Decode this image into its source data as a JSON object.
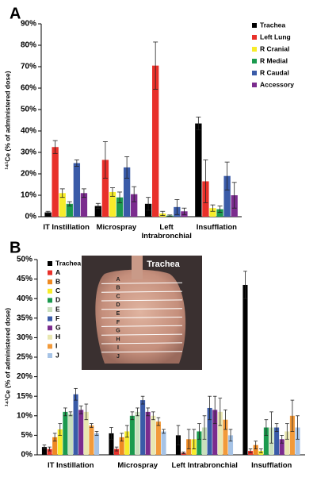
{
  "chart_data": [
    {
      "type": "bar",
      "panel_label": "A",
      "y_label": "¹⁴¹Ce (% of administered dose)",
      "categories": [
        "IT Instillation",
        "Microspray",
        "Left Intrabronchial",
        "Insufflation"
      ],
      "ylim": [
        0,
        90
      ],
      "yticks": [
        {
          "value": 0,
          "label": "0%"
        },
        {
          "value": 10,
          "label": "10%"
        },
        {
          "value": 20,
          "label": "20%"
        },
        {
          "value": 30,
          "label": "30%"
        },
        {
          "value": 40,
          "label": "40%"
        },
        {
          "value": 50,
          "label": "50%"
        },
        {
          "value": 60,
          "label": "60%"
        },
        {
          "value": 70,
          "label": "70%"
        },
        {
          "value": 80,
          "label": "80%"
        },
        {
          "value": 90,
          "label": "90%"
        }
      ],
      "legend": "right",
      "series": [
        {
          "name": "Trachea",
          "color": "#000000",
          "values": [
            2,
            5,
            6,
            43.5
          ],
          "errors": [
            0.5,
            1.2,
            3,
            3
          ]
        },
        {
          "name": "Left Lung",
          "color": "#e8302a",
          "values": [
            32.5,
            26.5,
            70.5,
            16.5
          ],
          "errors": [
            3,
            8.5,
            11,
            10
          ]
        },
        {
          "name": "R Cranial",
          "color": "#f7ec2a",
          "values": [
            11,
            11.5,
            1.5,
            4
          ],
          "errors": [
            2,
            2,
            1,
            1.5
          ]
        },
        {
          "name": "R Medial",
          "color": "#1b9a4e",
          "values": [
            6,
            9,
            0.5,
            3.5
          ],
          "errors": [
            1,
            2.5,
            0.3,
            1.5
          ]
        },
        {
          "name": "R Caudal",
          "color": "#3a5ba8",
          "values": [
            25,
            23,
            4.5,
            19
          ],
          "errors": [
            1.5,
            5,
            3.5,
            6.5
          ]
        },
        {
          "name": "Accessory",
          "color": "#7b2c8e",
          "values": [
            11,
            10.5,
            2.5,
            10
          ],
          "errors": [
            2,
            3.5,
            1.5,
            6
          ]
        }
      ]
    },
    {
      "type": "bar",
      "panel_label": "B",
      "y_label": "¹⁴¹Ce (% of administered dose)",
      "categories": [
        "IT Instillation",
        "Microspray",
        "Left Intrabronchial",
        "Insufflation"
      ],
      "ylim": [
        0,
        50
      ],
      "yticks": [
        {
          "value": 0,
          "label": "0%"
        },
        {
          "value": 5,
          "label": "5%"
        },
        {
          "value": 10,
          "label": "10%"
        },
        {
          "value": 15,
          "label": "15%"
        },
        {
          "value": 20,
          "label": "20%"
        },
        {
          "value": 25,
          "label": "25%"
        },
        {
          "value": 30,
          "label": "30%"
        },
        {
          "value": 35,
          "label": "35%"
        },
        {
          "value": 40,
          "label": "40%"
        },
        {
          "value": 45,
          "label": "45%"
        },
        {
          "value": 50,
          "label": "50%"
        }
      ],
      "legend": "top-left",
      "inset": {
        "label": "Trachea",
        "sections": [
          "A",
          "B",
          "C",
          "D",
          "E",
          "F",
          "G",
          "H",
          "I",
          "J"
        ]
      },
      "series": [
        {
          "name": "Trachea",
          "color": "#000000",
          "values": [
            2,
            5.5,
            5,
            43.5
          ],
          "errors": [
            0.5,
            1.5,
            2.5,
            3.5
          ]
        },
        {
          "name": "A",
          "color": "#e8302a",
          "values": [
            1.5,
            1.5,
            0.5,
            1
          ],
          "errors": [
            0.5,
            0.5,
            0.2,
            0.5
          ]
        },
        {
          "name": "B",
          "color": "#ef8a22",
          "values": [
            4.5,
            4.5,
            4,
            2.5
          ],
          "errors": [
            1,
            1,
            2.5,
            1
          ]
        },
        {
          "name": "C",
          "color": "#f7ec2a",
          "values": [
            6.5,
            6,
            4,
            1
          ],
          "errors": [
            1.5,
            1.5,
            2.5,
            0.5
          ]
        },
        {
          "name": "D",
          "color": "#1b9a4e",
          "values": [
            11,
            10,
            6,
            7
          ],
          "errors": [
            1,
            1,
            2,
            2
          ]
        },
        {
          "name": "E",
          "color": "#c9e0bd",
          "values": [
            10.5,
            11,
            7,
            7
          ],
          "errors": [
            0.5,
            1,
            3,
            4
          ]
        },
        {
          "name": "F",
          "color": "#3a5ba8",
          "values": [
            15.5,
            14,
            12,
            7
          ],
          "errors": [
            1.5,
            1,
            3,
            1
          ]
        },
        {
          "name": "G",
          "color": "#7b2c8e",
          "values": [
            11.5,
            11,
            11.5,
            4
          ],
          "errors": [
            1,
            1,
            3.5,
            1
          ]
        },
        {
          "name": "H",
          "color": "#e9e7b0",
          "values": [
            11,
            10,
            11,
            6
          ],
          "errors": [
            2,
            1,
            3.5,
            2
          ]
        },
        {
          "name": "I",
          "color": "#f29a3a",
          "values": [
            7.5,
            8.5,
            9,
            10
          ],
          "errors": [
            0.5,
            1,
            2.5,
            4
          ]
        },
        {
          "name": "J",
          "color": "#a6c3e6",
          "values": [
            5.5,
            6,
            5,
            7
          ],
          "errors": [
            0.5,
            0.5,
            1.5,
            3
          ]
        }
      ]
    }
  ]
}
